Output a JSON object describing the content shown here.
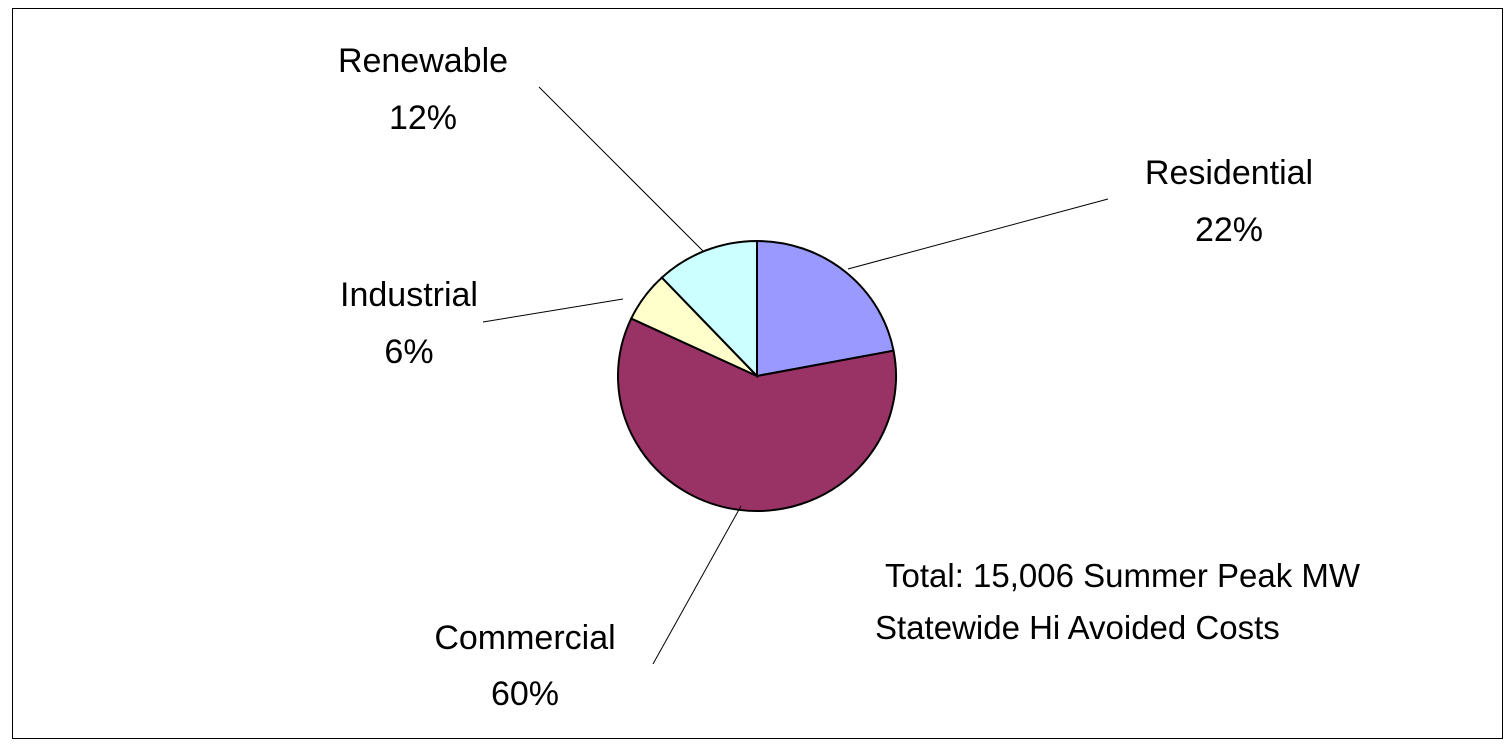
{
  "chart_data": {
    "type": "pie",
    "title": "",
    "slices": [
      {
        "label": "Residential",
        "value": 22,
        "value_label": "22%",
        "color": "#9999ff"
      },
      {
        "label": "Commercial",
        "value": 60,
        "value_label": "60%",
        "color": "#993366"
      },
      {
        "label": "Industrial",
        "value": 6,
        "value_label": "6%",
        "color": "#ffffcc"
      },
      {
        "label": "Renewable",
        "value": 12,
        "value_label": "12%",
        "color": "#ccffff"
      }
    ],
    "annotations": [
      "Total: 15,006 Summer Peak MW",
      "Statewide Hi Avoided Costs"
    ],
    "legend": "none"
  }
}
